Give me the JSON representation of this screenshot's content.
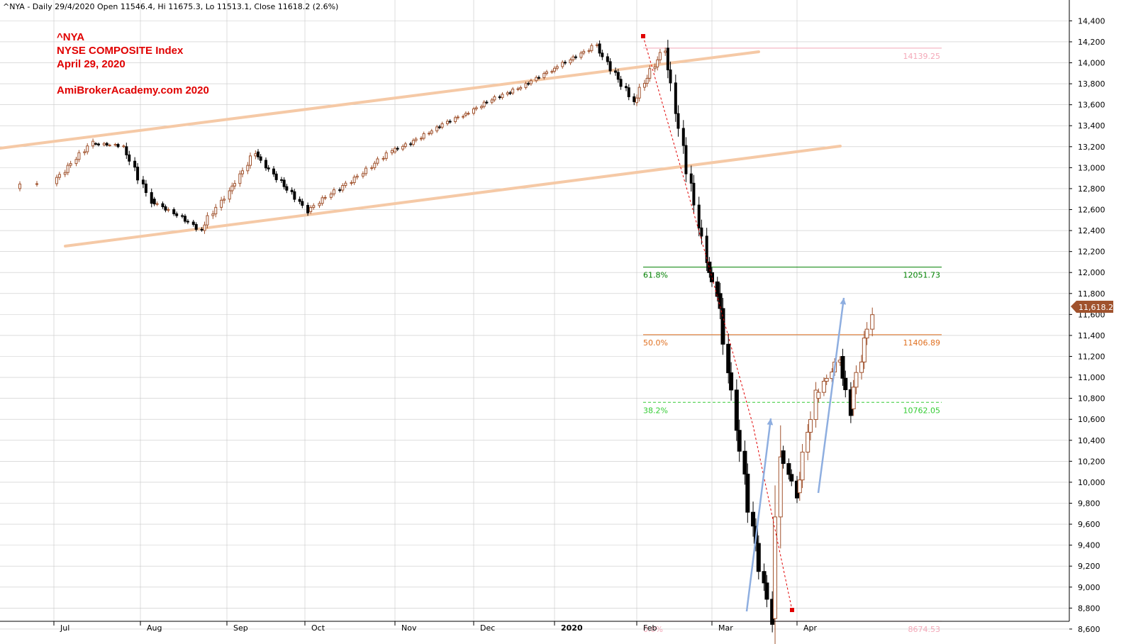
{
  "header": "^NYA - Daily 29/4/2020 Open 11546.4, Hi 11675.3, Lo 11513.1, Close 11618.2 (2.6%)",
  "annotations": {
    "symbol": "^NYA",
    "index_name": "NYSE COMPOSITE Index",
    "date": "April 29, 2020",
    "site": "AmiBrokerAcademy.com  2020"
  },
  "last_price_label": "11,618.2",
  "colors": {
    "up": "#a0522d",
    "down": "#000000",
    "channel": "#f5c9a6",
    "grid": "#c8c8c8"
  },
  "fib_levels": [
    {
      "pct": "61.8%",
      "value": "12051.73",
      "color": "#008000",
      "dash": false
    },
    {
      "pct": "50.0%",
      "value": "11406.89",
      "color": "#e07020",
      "dash": false
    },
    {
      "pct": "38.2%",
      "value": "10762.05",
      "color": "#33cc33",
      "dash": true
    },
    {
      "pct": "0.0%",
      "value": "8674.53",
      "color": "#f4a8b8",
      "dash": false
    },
    {
      "pct": "",
      "value": "14139.25",
      "color": "#f4a8b8",
      "dash": false
    }
  ],
  "chart_data": {
    "type": "candlestick",
    "y_axis": {
      "min": 8500,
      "max": 14500,
      "ticks": [
        "14,400",
        "14,200",
        "14,000",
        "13,800",
        "13,600",
        "13,400",
        "13,200",
        "13,000",
        "12,800",
        "12,600",
        "12,400",
        "12,200",
        "12,000",
        "11,800",
        "11,600",
        "11,400",
        "11,200",
        "11,000",
        "10,800",
        "10,600",
        "10,400",
        "10,200",
        "10,000",
        "9,800",
        "9,600",
        "9,400",
        "9,200",
        "9,000",
        "8,800",
        "8,600"
      ],
      "position": "right"
    },
    "x_axis": {
      "month_labels": [
        "Jul",
        "Aug",
        "Sep",
        "Oct",
        "Nov",
        "Dec",
        "2020",
        "Feb",
        "Mar",
        "Apr"
      ]
    },
    "grid": true,
    "series": [
      {
        "date": "2019-06-28",
        "close": 12800
      },
      {
        "date": "2019-07-15",
        "close": 13230
      },
      {
        "date": "2019-07-26",
        "close": 13200
      },
      {
        "date": "2019-08-05",
        "close": 12700
      },
      {
        "date": "2019-08-23",
        "close": 12400
      },
      {
        "date": "2019-09-12",
        "close": 13150
      },
      {
        "date": "2019-10-02",
        "close": 12580
      },
      {
        "date": "2019-10-31",
        "close": 13150
      },
      {
        "date": "2019-11-27",
        "close": 13500
      },
      {
        "date": "2019-12-31",
        "close": 13920
      },
      {
        "date": "2020-01-17",
        "close": 14180
      },
      {
        "date": "2020-01-31",
        "close": 13620
      },
      {
        "date": "2020-02-12",
        "close": 14140
      },
      {
        "date": "2020-02-28",
        "close": 12100
      },
      {
        "date": "2020-03-03",
        "close": 11800
      },
      {
        "date": "2020-03-16",
        "close": 9580
      },
      {
        "date": "2020-03-23",
        "close": 8700
      },
      {
        "date": "2020-03-26",
        "close": 10300
      },
      {
        "date": "2020-04-01",
        "close": 9900
      },
      {
        "date": "2020-04-08",
        "close": 10800
      },
      {
        "date": "2020-04-17",
        "close": 11200
      },
      {
        "date": "2020-04-21",
        "close": 10700
      },
      {
        "date": "2020-04-29",
        "close": 11618
      }
    ]
  }
}
